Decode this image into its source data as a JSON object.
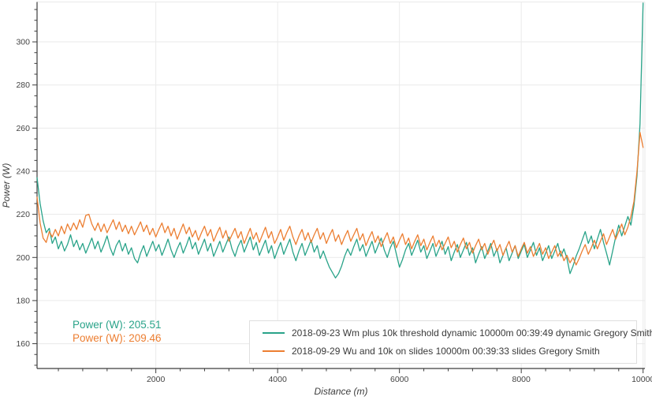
{
  "chart_data": {
    "type": "line",
    "title": "",
    "xlabel": "Distance (m)",
    "ylabel": "Power (W)",
    "xlim": [
      50,
      10030
    ],
    "ylim": [
      148.5,
      318.5
    ],
    "x_ticks": [
      2000,
      4000,
      6000,
      8000,
      10000
    ],
    "x_minor_tick_step": 400,
    "y_ticks": [
      160,
      180,
      200,
      220,
      240,
      260,
      280,
      300
    ],
    "y_minor_tick_step": 5,
    "grid": true,
    "legend_position": "bottom-right",
    "colors": {
      "axis": "#3d3d3d",
      "grid": "#eaeaea",
      "tick_label": "#444444"
    },
    "x": [
      50,
      100,
      150,
      200,
      250,
      300,
      350,
      400,
      450,
      500,
      550,
      600,
      650,
      700,
      750,
      800,
      850,
      900,
      950,
      1000,
      1050,
      1100,
      1150,
      1200,
      1250,
      1300,
      1350,
      1400,
      1450,
      1500,
      1550,
      1600,
      1650,
      1700,
      1750,
      1800,
      1850,
      1900,
      1950,
      2000,
      2050,
      2100,
      2150,
      2200,
      2250,
      2300,
      2350,
      2400,
      2450,
      2500,
      2550,
      2600,
      2650,
      2700,
      2750,
      2800,
      2850,
      2900,
      2950,
      3000,
      3050,
      3100,
      3150,
      3200,
      3250,
      3300,
      3350,
      3400,
      3450,
      3500,
      3550,
      3600,
      3650,
      3700,
      3750,
      3800,
      3850,
      3900,
      3950,
      4000,
      4050,
      4100,
      4150,
      4200,
      4250,
      4300,
      4350,
      4400,
      4450,
      4500,
      4550,
      4600,
      4650,
      4700,
      4750,
      4800,
      4850,
      4900,
      4950,
      5000,
      5050,
      5100,
      5150,
      5200,
      5250,
      5300,
      5350,
      5400,
      5450,
      5500,
      5550,
      5600,
      5650,
      5700,
      5750,
      5800,
      5850,
      5900,
      5950,
      6000,
      6050,
      6100,
      6150,
      6200,
      6250,
      6300,
      6350,
      6400,
      6450,
      6500,
      6550,
      6600,
      6650,
      6700,
      6750,
      6800,
      6850,
      6900,
      6950,
      7000,
      7050,
      7100,
      7150,
      7200,
      7250,
      7300,
      7350,
      7400,
      7450,
      7500,
      7550,
      7600,
      7650,
      7700,
      7750,
      7800,
      7850,
      7900,
      7950,
      8000,
      8050,
      8100,
      8150,
      8200,
      8250,
      8300,
      8350,
      8400,
      8450,
      8500,
      8550,
      8600,
      8650,
      8700,
      8750,
      8800,
      8850,
      8900,
      8950,
      9000,
      9050,
      9100,
      9150,
      9200,
      9250,
      9300,
      9350,
      9400,
      9450,
      9500,
      9550,
      9600,
      9650,
      9700,
      9750,
      9800,
      9850,
      9900,
      9950,
      10000
    ],
    "series": [
      {
        "name": "2018-09-23 Wm plus 10k threshold dynamic 10000m 00:39:49 dynamic Gregory Smith",
        "color": "#29a389",
        "mean_power_w": 205.51,
        "values": [
          237,
          225,
          217,
          211.5,
          213.5,
          206.5,
          209.5,
          204,
          207.5,
          203,
          206,
          210.5,
          205,
          208,
          203.5,
          206.5,
          202,
          205.5,
          209,
          204,
          207.5,
          202.5,
          206,
          210,
          204.5,
          201,
          205.5,
          208,
          203,
          206.5,
          201.5,
          204.5,
          199.5,
          197.5,
          202,
          205.5,
          200.5,
          204,
          207.5,
          203,
          206,
          201,
          204.5,
          208.5,
          203.5,
          200,
          204,
          207,
          202,
          205.5,
          209.5,
          204,
          207,
          201.5,
          205,
          208.5,
          203,
          206.5,
          200.5,
          204,
          207.5,
          202.5,
          206,
          209.5,
          204,
          200.5,
          205,
          208,
          202.5,
          206,
          209.5,
          203.5,
          207,
          201,
          204.5,
          208,
          202,
          205.5,
          199.5,
          203.5,
          207,
          201.5,
          205,
          208.5,
          202.5,
          198.5,
          203,
          206.5,
          201,
          204.5,
          208,
          202.5,
          205.5,
          199.5,
          203,
          199,
          195.5,
          193,
          190.5,
          192.5,
          196,
          200.5,
          204,
          201,
          205,
          208.5,
          203,
          206,
          200.5,
          204,
          207.5,
          202,
          205.5,
          209,
          203.5,
          200,
          204.5,
          207.5,
          201.5,
          195.5,
          199,
          203.5,
          206.5,
          201,
          204.5,
          208,
          202.5,
          205.5,
          199.5,
          203,
          206.5,
          200.5,
          204,
          207.5,
          201.5,
          205,
          198.5,
          202.5,
          206,
          200,
          203.5,
          207,
          201,
          204.5,
          197.5,
          201.5,
          205,
          199.5,
          203,
          206.5,
          200.5,
          204,
          197.5,
          201,
          204.5,
          198.5,
          202,
          205.5,
          199.5,
          203,
          206,
          200,
          203.5,
          207,
          201,
          204.5,
          198.5,
          202,
          205.5,
          199.5,
          203,
          206.5,
          200.5,
          204,
          199.5,
          192.5,
          196,
          200.5,
          204,
          208,
          212,
          206.5,
          210,
          204,
          208.5,
          213,
          207,
          202,
          196.5,
          203,
          209.5,
          215,
          210,
          214.5,
          219,
          215,
          224,
          238,
          262,
          318
        ]
      },
      {
        "name": "2018-09-29 Wu and 10k on slides 10000m 00:39:33 slides Gregory Smith",
        "color": "#ec7e31",
        "mean_power_w": 209.46,
        "values": [
          228,
          216,
          209,
          207,
          212,
          209.5,
          213,
          210,
          214.5,
          211,
          215.5,
          212.5,
          216,
          213,
          217.5,
          214,
          219.5,
          220,
          215.5,
          212.5,
          216,
          212,
          215.5,
          211.5,
          214.5,
          217.5,
          213,
          216.5,
          212,
          215,
          211,
          214.5,
          210.5,
          213.5,
          216.5,
          212,
          215,
          210.5,
          213.5,
          209.5,
          213,
          216,
          211.5,
          214.5,
          210,
          213.5,
          208.5,
          212,
          215.5,
          211,
          214,
          209.5,
          212.5,
          208,
          211.5,
          214.5,
          210,
          213,
          207.5,
          211,
          214,
          209,
          212.5,
          207.5,
          210.5,
          213.5,
          209,
          212,
          206.5,
          210,
          213.5,
          208.5,
          211.5,
          207,
          210.5,
          214,
          209,
          212,
          206.5,
          209.5,
          213,
          208,
          211.5,
          214.5,
          209.5,
          206,
          210,
          213,
          208,
          211.5,
          207,
          210.5,
          213.5,
          208.5,
          211.5,
          206.5,
          210,
          213,
          207.5,
          210.5,
          206,
          209.5,
          212.5,
          207.5,
          210.5,
          213.5,
          208,
          211,
          205.5,
          209,
          212,
          207,
          210,
          205,
          208.5,
          211.5,
          206.5,
          209.5,
          204.5,
          208,
          211,
          206,
          209,
          204,
          207.5,
          210.5,
          205.5,
          208.5,
          203.5,
          207,
          210,
          205,
          208,
          203.5,
          206.5,
          209.5,
          204.5,
          207.5,
          202.5,
          206,
          209,
          204,
          207,
          202,
          205.5,
          208.5,
          203.5,
          206.5,
          201.5,
          205,
          208,
          203,
          206,
          201,
          204.5,
          207.5,
          202.5,
          205.5,
          200.5,
          204,
          207,
          202,
          205,
          200.5,
          203.5,
          206.5,
          201.5,
          204.5,
          199.5,
          202.5,
          205.5,
          200.5,
          203,
          198.5,
          201,
          197.5,
          200,
          196.5,
          199.5,
          203,
          206,
          201.5,
          204.5,
          208,
          204,
          207.5,
          211,
          206,
          209.5,
          213,
          208.5,
          212,
          215.5,
          210.5,
          214,
          219,
          226,
          240,
          258,
          251
        ]
      }
    ]
  },
  "annotations": [
    {
      "label": "Power (W): 205.51",
      "color": "#29a389"
    },
    {
      "label": "Power (W): 209.46",
      "color": "#ec7e31"
    }
  ]
}
